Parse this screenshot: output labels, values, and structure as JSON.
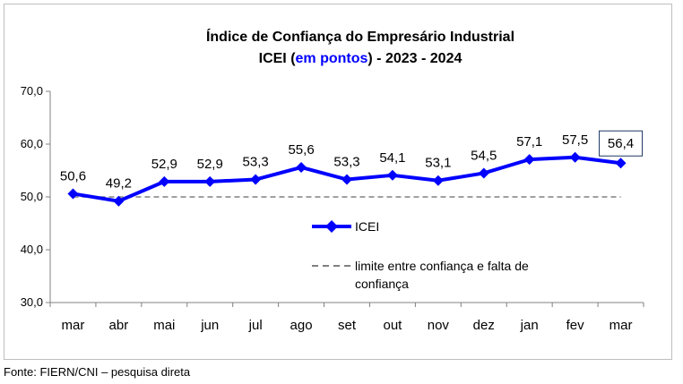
{
  "chart_data": {
    "type": "line",
    "title_line1": "Índice de Confiança do Empresário Industrial",
    "title_line2_pre": "ICEI (",
    "title_line2_highlight": "em pontos",
    "title_line2_post": ") - 2023 - 2024",
    "categories": [
      "mar",
      "abr",
      "mai",
      "jun",
      "jul",
      "ago",
      "set",
      "out",
      "nov",
      "dez",
      "jan",
      "fev",
      "mar"
    ],
    "series": [
      {
        "name": "ICEI",
        "values": [
          50.6,
          49.2,
          52.9,
          52.9,
          53.3,
          55.6,
          53.3,
          54.1,
          53.1,
          54.5,
          57.1,
          57.5,
          56.4
        ],
        "labels": [
          "50,6",
          "49,2",
          "52,9",
          "52,9",
          "53,3",
          "55,6",
          "53,3",
          "54,1",
          "53,1",
          "54,5",
          "57,1",
          "57,5",
          "56,4"
        ],
        "color": "#0000ff"
      },
      {
        "name": "limite entre confiança e falta de confiança",
        "name_line1": "limite entre confiança e falta de",
        "name_line2": "confiança",
        "values": [
          50,
          50,
          50,
          50,
          50,
          50,
          50,
          50,
          50,
          50,
          50,
          50,
          50
        ],
        "color": "#808080",
        "style": "dashed"
      }
    ],
    "yticks": [
      "30,0",
      "40,0",
      "50,0",
      "60,0",
      "70,0"
    ],
    "ylim": [
      30,
      70
    ],
    "highlight_last_label": true,
    "highlight_color": "#1f3864",
    "title_highlight_color": "#0000ff"
  },
  "source": "Fonte: FIERN/CNI – pesquisa direta"
}
